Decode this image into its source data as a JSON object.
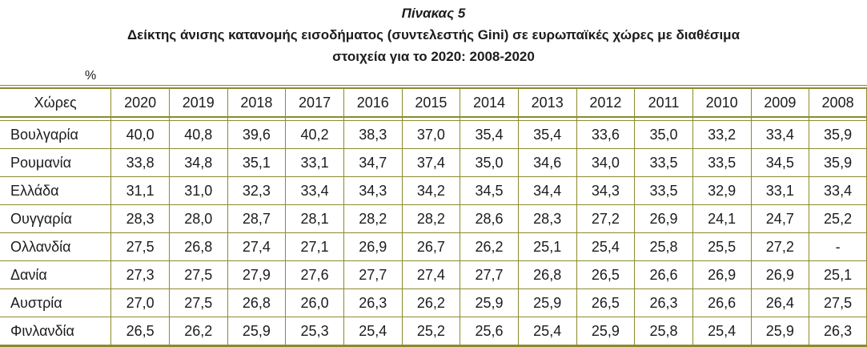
{
  "title": {
    "caption": "Πίνακας 5",
    "subtitle_line1": "Δείκτης άνισης κατανομής εισοδήματος (συντελεστής Gini) σε ευρωπαϊκές χώρες με διαθέσιμα",
    "subtitle_line2": "στοιχεία για το 2020: 2008-2020"
  },
  "unit_label": "%",
  "colors": {
    "table_border": "#8b8b2e",
    "text": "#1c1c1c",
    "background": "#ffffff"
  },
  "chart_data": {
    "type": "table",
    "title": "Πίνακας 5 — Δείκτης άνισης κατανομής εισοδήματος (συντελεστής Gini) σε ευρωπαϊκές χώρες με διαθέσιμα στοιχεία για το 2020: 2008-2020",
    "unit": "%",
    "columns": [
      "Χώρες",
      "2020",
      "2019",
      "2018",
      "2017",
      "2016",
      "2015",
      "2014",
      "2013",
      "2012",
      "2011",
      "2010",
      "2009",
      "2008"
    ],
    "rows": [
      {
        "country": "Βουλγαρία",
        "values": [
          "40,0",
          "40,8",
          "39,6",
          "40,2",
          "38,3",
          "37,0",
          "35,4",
          "35,4",
          "33,6",
          "35,0",
          "33,2",
          "33,4",
          "35,9"
        ]
      },
      {
        "country": "Ρουμανία",
        "values": [
          "33,8",
          "34,8",
          "35,1",
          "33,1",
          "34,7",
          "37,4",
          "35,0",
          "34,6",
          "34,0",
          "33,5",
          "33,5",
          "34,5",
          "35,9"
        ]
      },
      {
        "country": "Ελλάδα",
        "values": [
          "31,1",
          "31,0",
          "32,3",
          "33,4",
          "34,3",
          "34,2",
          "34,5",
          "34,4",
          "34,3",
          "33,5",
          "32,9",
          "33,1",
          "33,4"
        ]
      },
      {
        "country": "Ουγγαρία",
        "values": [
          "28,3",
          "28,0",
          "28,7",
          "28,1",
          "28,2",
          "28,2",
          "28,6",
          "28,3",
          "27,2",
          "26,9",
          "24,1",
          "24,7",
          "25,2"
        ]
      },
      {
        "country": "Ολλανδία",
        "values": [
          "27,5",
          "26,8",
          "27,4",
          "27,1",
          "26,9",
          "26,7",
          "26,2",
          "25,1",
          "25,4",
          "25,8",
          "25,5",
          "27,2",
          "-"
        ]
      },
      {
        "country": "Δανία",
        "values": [
          "27,3",
          "27,5",
          "27,9",
          "27,6",
          "27,7",
          "27,4",
          "27,7",
          "26,8",
          "26,5",
          "26,6",
          "26,9",
          "26,9",
          "25,1"
        ]
      },
      {
        "country": "Αυστρία",
        "values": [
          "27,0",
          "27,5",
          "26,8",
          "26,0",
          "26,3",
          "26,2",
          "25,9",
          "25,9",
          "26,5",
          "26,3",
          "26,6",
          "26,4",
          "27,5"
        ]
      },
      {
        "country": "Φινλανδία",
        "values": [
          "26,5",
          "26,2",
          "25,9",
          "25,3",
          "25,4",
          "25,2",
          "25,6",
          "25,4",
          "25,9",
          "25,8",
          "25,4",
          "25,9",
          "26,3"
        ]
      }
    ]
  }
}
